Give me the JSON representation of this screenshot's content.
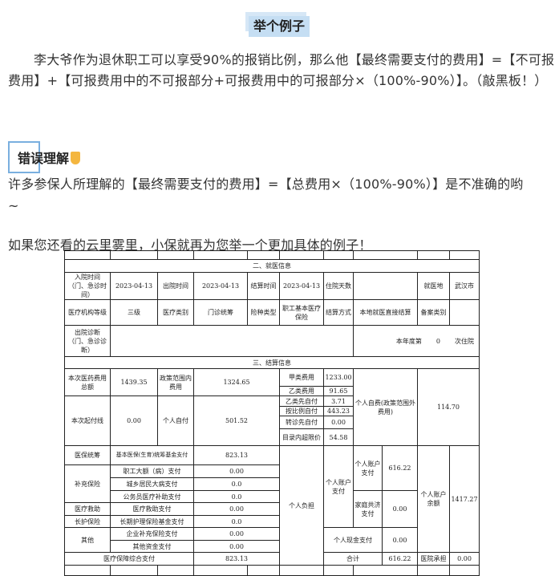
{
  "heading": "举个例子",
  "para1": "李大爷作为退休职工可以享受90%的报销比例，那么他【最终需要支付的费用】=【不可报费用】+【可报费用中的不可报部分+可报费用中的可报部分×（100%-90%）】。（敲黑板！）",
  "wrong_title": "错误理解",
  "para2": "许多参保人所理解的【最终需要支付的费用】=【总费用×（100%-90%）】是不准确的哟",
  "para3": "~",
  "para4": "如果您还看的云里雾里，小保就再为您举一个更加具体的例子！",
  "table": {
    "sec2": "二、就医信息",
    "admit_label": "入院时间（门、急诊时间）",
    "admit": "2023-04-13",
    "discharge_label": "出院时间",
    "discharge": "2023-04-13",
    "settle_label": "结算时间",
    "settle": "2023-04-13",
    "days_label": "住院天数",
    "days": "",
    "place_label": "就医地",
    "place": "武汉市",
    "level_label": "医疗机构等级",
    "level": "三级",
    "medtype_label": "医疗类别",
    "medtype": "门诊统筹",
    "instype_label": "险种类型",
    "instype": "职工基本医疗保险",
    "settlemode_label": "结算方式",
    "settlemode": "本地就医直接结算",
    "filing_label": "备案类别",
    "filing": "",
    "diag_label": "出院诊断（门、急诊诊断）",
    "year_label": "本年度第",
    "year_count": "0",
    "year_suffix": "次住院",
    "sec3": "三、结算信息",
    "total_label": "本次医药费用总额",
    "total": "1439.35",
    "policy_label": "政策范围内费用",
    "policy": "1324.65",
    "classA_label": "甲类费用",
    "classA": "1233.00",
    "classB_label": "乙类费用",
    "classB": "91.65",
    "classBpre_label": "乙类先自付",
    "classBpre": "3.71",
    "ratio_label": "按比例自付",
    "ratio": "443.23",
    "transfer_label": "转诊先自付",
    "transfer": "0.00",
    "overlimit_label": "目录内超限价",
    "overlimit": "54.58",
    "selfpay_out_label": "个人自费(政策范围外费用)",
    "selfpay_out": "114.70",
    "deductible_label": "本次起付线",
    "deductible": "0.00",
    "selfpay_label": "个人自付",
    "selfpay": "501.52",
    "pool_label": "医保统筹",
    "pool_item": "基本医保(生育)统筹基金支付",
    "pool": "823.13",
    "supp_label": "补充保险",
    "supp1_item": "职工大额（病）支付",
    "supp1": "0.00",
    "supp2_item": "城乡居民大病支付",
    "supp2": "0.0",
    "supp3_item": "公务员医疗补助支付",
    "supp3": "0.0",
    "aid_label": "医疗救助",
    "aid_item": "医疗救助支付",
    "aid": "0.00",
    "ltc_label": "长护保险",
    "ltc_item": "长期护理保险基金支付",
    "ltc": "0.0",
    "other_label": "其他",
    "other1_item": "企业补充保险支付",
    "other1": "0.00",
    "other2_item": "其他资金支付",
    "other2": "0.00",
    "combined_label": "医疗保障综合支付",
    "combined": "823.13",
    "burden_label": "个人负担",
    "acct_label": "个人账户支付",
    "acct_pay_label": "个人账户支付",
    "acct_pay": "616.22",
    "family_label": "家庭共济支付",
    "family": "0.00",
    "balance_label": "个人账户余额",
    "balance": "1417.27",
    "cash_label": "个人现金支付",
    "cash": "0.00",
    "sum_label": "合计",
    "sum": "616.22",
    "hospital_label": "医院承担",
    "hospital": "0.00"
  }
}
